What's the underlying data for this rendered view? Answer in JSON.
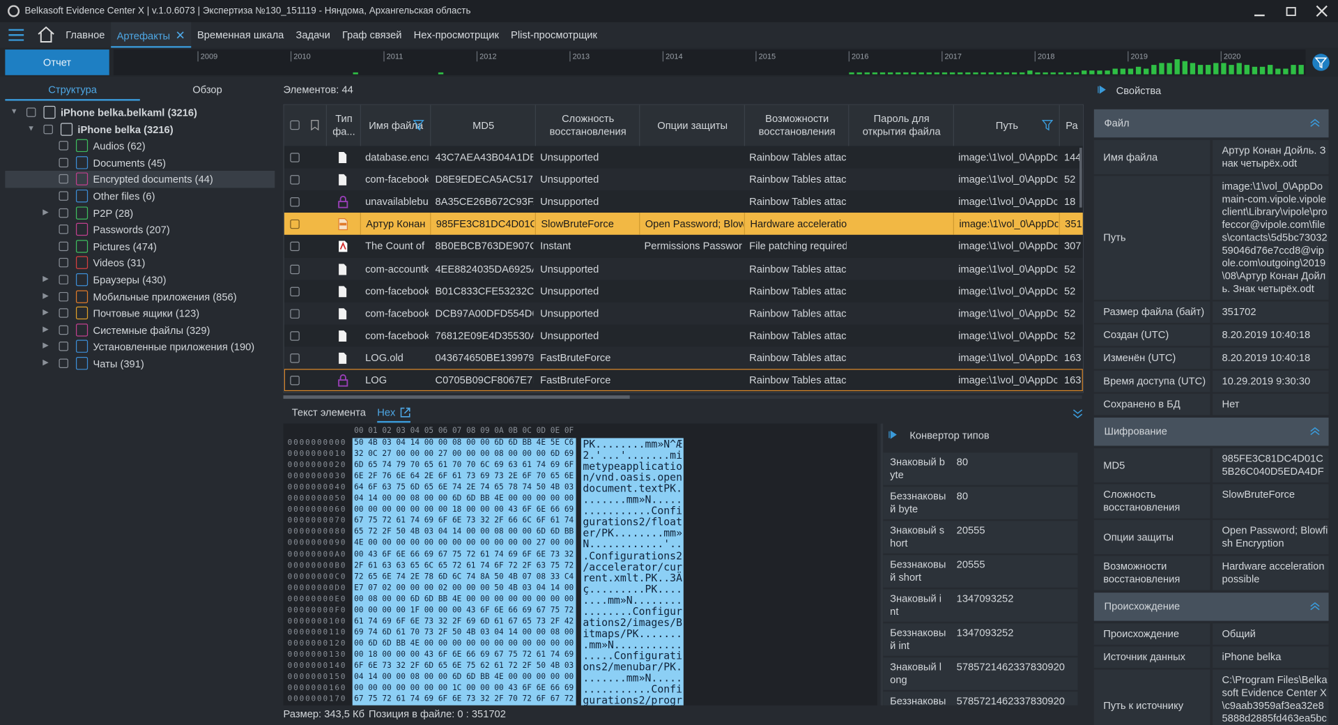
{
  "window": {
    "title": "Belkasoft Evidence Center X | v.1.0.6073 | Экспертиза №130_151119 - Няндома, Архангельская область"
  },
  "menu": {
    "items": [
      "Главное",
      "Артефакты",
      "Временная шкала",
      "Задачи",
      "Граф связей",
      "Hex-просмотрщик",
      "Plist-просмотрщик"
    ],
    "active": 1
  },
  "toolbar": {
    "report": "Отчет"
  },
  "timeline": {
    "years": [
      2009,
      2010,
      2011,
      2012,
      2013,
      2014,
      2015,
      2016,
      2017,
      2018,
      2019,
      2020
    ],
    "counts": [
      0,
      0,
      0,
      0,
      0,
      0,
      0,
      0,
      0,
      0,
      0,
      0,
      0,
      0,
      0,
      0,
      0,
      0,
      0,
      0,
      1,
      0,
      0,
      0,
      0,
      0,
      0,
      0,
      0,
      0,
      0,
      1,
      0,
      0,
      0,
      0,
      0,
      0,
      0,
      0,
      0,
      0,
      0,
      0,
      0,
      0,
      0,
      0,
      0,
      0,
      0,
      0,
      0,
      0,
      0,
      0,
      0,
      0,
      0,
      0,
      0,
      0,
      0,
      0,
      0,
      0,
      0,
      0,
      0,
      0,
      0,
      0,
      0,
      0,
      0,
      0,
      0,
      0,
      0,
      0,
      0,
      0,
      0,
      0,
      1,
      1,
      1,
      1,
      1,
      1,
      1,
      1,
      1,
      1,
      1,
      1,
      1,
      1,
      1,
      1,
      1,
      1,
      1,
      1,
      1,
      1,
      1,
      2,
      1,
      1,
      1,
      1,
      1,
      1,
      2,
      2,
      2,
      2,
      3,
      3,
      3,
      4,
      3,
      5,
      6,
      6,
      8,
      7,
      6,
      5,
      5,
      6,
      6,
      5,
      6,
      5,
      4,
      4,
      5,
      3,
      3,
      5,
      5,
      5
    ]
  },
  "left": {
    "tabs": [
      "Структура",
      "Обзор"
    ],
    "active": 0,
    "tree": [
      {
        "label": "iPhone belka.belkaml (3216)",
        "level": 0,
        "expanded": true,
        "color": "#c4cad1"
      },
      {
        "label": "iPhone belka (3216)",
        "level": 1,
        "expanded": true,
        "color": "#c4cad1"
      },
      {
        "label": "Audios (62)",
        "level": 2,
        "color": "#3fbf5f"
      },
      {
        "label": "Documents (45)",
        "level": 2,
        "color": "#3e8fd8"
      },
      {
        "label": "Encrypted documents (44)",
        "level": 2,
        "color": "#c2408f",
        "selected": true
      },
      {
        "label": "Other files (6)",
        "level": 2,
        "color": "#3e8fd8"
      },
      {
        "label": "P2P (28)",
        "level": 2,
        "expanded": false,
        "color": "#3fbf5f"
      },
      {
        "label": "Passwords (207)",
        "level": 2,
        "color": "#c2408f"
      },
      {
        "label": "Pictures (474)",
        "level": 2,
        "color": "#3fbf5f"
      },
      {
        "label": "Videos (31)",
        "level": 2,
        "color": "#d84040"
      },
      {
        "label": "Браузеры (430)",
        "level": 2,
        "expanded": false,
        "color": "#3e8fd8"
      },
      {
        "label": "Мобильные приложения (856)",
        "level": 2,
        "expanded": false,
        "color": "#e07b2a"
      },
      {
        "label": "Почтовые ящики (123)",
        "level": 2,
        "expanded": false,
        "color": "#e0a02a"
      },
      {
        "label": "Системные файлы (329)",
        "level": 2,
        "expanded": false,
        "color": "#c2408f"
      },
      {
        "label": "Установленные приложения (190)",
        "level": 2,
        "expanded": false,
        "color": "#3e8fd8"
      },
      {
        "label": "Чаты (391)",
        "level": 2,
        "expanded": false,
        "color": "#3e8fd8"
      }
    ]
  },
  "center": {
    "count": "Элементов: 44",
    "columns": [
      "Тип фа...",
      "Имя файла",
      "MD5",
      "Сложность восстановления",
      "Опции защиты",
      "Возможности восстановления",
      "Пароль для открытия файла",
      "Путь",
      "Ра"
    ],
    "rows": [
      {
        "icon": "doc",
        "name": "database.encr",
        "md5": "43C7AEA43B04A1DB",
        "complexity": "Unsupported",
        "recovery": "Rainbow Tables attack",
        "path": "image:\\1\\vol_0\\AppDc",
        "size": "144"
      },
      {
        "icon": "doc",
        "name": "com-facebook",
        "md5": "D8E9EDECA5AC517D",
        "complexity": "Unsupported",
        "recovery": "Rainbow Tables attack",
        "path": "image:\\1\\vol_0\\AppDc",
        "size": "52"
      },
      {
        "icon": "lock",
        "name": "unavailablebu",
        "md5": "8A35CE26B672C93FA",
        "complexity": "Unsupported",
        "recovery": "Rainbow Tables attack",
        "path": "image:\\1\\vol_0\\AppDc",
        "size": "18"
      },
      {
        "icon": "odt",
        "name": "Артур Конан",
        "md5": "985FE3C81DC4D01C:",
        "complexity": "SlowBruteForce",
        "options": "Open Password; Blowf",
        "recovery": "Hardware acceleration",
        "path": "image:\\1\\vol_0\\AppDc",
        "size": "351",
        "selected": true
      },
      {
        "icon": "pdf",
        "name": "The Count of",
        "md5": "8B0EBCB763DE907CI",
        "complexity": "Instant",
        "options": "Permissions Password;",
        "recovery": "File patching required",
        "path": "image:\\1\\vol_0\\AppDc",
        "size": "307"
      },
      {
        "icon": "doc",
        "name": "com-accountk",
        "md5": "4EE8824035DA6925A",
        "complexity": "Unsupported",
        "recovery": "Rainbow Tables attack",
        "path": "image:\\1\\vol_0\\AppDc",
        "size": "52"
      },
      {
        "icon": "doc",
        "name": "com-facebook",
        "md5": "B01C833CFE53232C7",
        "complexity": "Unsupported",
        "recovery": "Rainbow Tables attack",
        "path": "image:\\1\\vol_0\\AppDc",
        "size": "52"
      },
      {
        "icon": "doc",
        "name": "com-facebook",
        "md5": "DCB97A00DFD554D6",
        "complexity": "Unsupported",
        "recovery": "Rainbow Tables attack",
        "path": "image:\\1\\vol_0\\AppDc",
        "size": "52"
      },
      {
        "icon": "doc",
        "name": "com-facebook",
        "md5": "76812E09E4D35530A",
        "complexity": "Unsupported",
        "recovery": "Rainbow Tables attack",
        "path": "image:\\1\\vol_0\\AppDc",
        "size": "52"
      },
      {
        "icon": "doc",
        "name": "LOG.old",
        "md5": "043674650BE139979",
        "complexity": "FastBruteForce",
        "recovery": "Rainbow Tables attack",
        "path": "image:\\1\\vol_0\\AppDc",
        "size": "163"
      },
      {
        "icon": "lock",
        "name": "LOG",
        "md5": "C0705B09CF8067E7B",
        "complexity": "FastBruteForce",
        "recovery": "Rainbow Tables attack",
        "path": "image:\\1\\vol_0\\AppDc",
        "size": "163",
        "focused": true
      }
    ]
  },
  "bottom": {
    "tabs": [
      "Текст элемента",
      "Hex"
    ],
    "active": 1,
    "hex_header": "00 01 02 03 04 05 06 07 08 09 0A 0B 0C 0D 0E 0F",
    "hex": [
      {
        "offset": "0000000000",
        "hex": "50 4B 03 04 14 00 00 08 00 00 6D 6D BB 4E 5E C6",
        "ascii": "PK........mm»N^Æ"
      },
      {
        "offset": "0000000010",
        "hex": "32 0C 27 00 00 00 27 00 00 00 08 00 00 00 6D 69",
        "ascii": "2.'...'.......mi"
      },
      {
        "offset": "0000000020",
        "hex": "6D 65 74 79 70 65 61 70 70 6C 69 63 61 74 69 6F",
        "ascii": "metypeapplicatio"
      },
      {
        "offset": "0000000030",
        "hex": "6E 2F 76 6E 64 2E 6F 61 73 69 73 2E 6F 70 65 6E",
        "ascii": "n/vnd.oasis.open"
      },
      {
        "offset": "0000000040",
        "hex": "64 6F 63 75 6D 65 6E 74 2E 74 65 78 74 50 4B 03",
        "ascii": "document.textPK."
      },
      {
        "offset": "0000000050",
        "hex": "04 14 00 00 08 00 00 6D 6D BB 4E 00 00 00 00 00",
        "ascii": ".......mm»N....."
      },
      {
        "offset": "0000000060",
        "hex": "00 00 00 00 00 00 00 18 00 00 00 43 6F 6E 66 69",
        "ascii": "...........Confi"
      },
      {
        "offset": "0000000070",
        "hex": "67 75 72 61 74 69 6F 6E 73 32 2F 66 6C 6F 61 74",
        "ascii": "gurations2/float"
      },
      {
        "offset": "0000000080",
        "hex": "65 72 2F 50 4B 03 04 14 00 00 08 00 00 6D 6D BB",
        "ascii": "er/PK........mm»"
      },
      {
        "offset": "0000000090",
        "hex": "4E 00 00 00 00 00 00 00 00 00 00 00 00 27 00 00",
        "ascii": "N............'.."
      },
      {
        "offset": "00000000A0",
        "hex": "00 43 6F 6E 66 69 67 75 72 61 74 69 6F 6E 73 32",
        "ascii": ".Configurations2"
      },
      {
        "offset": "00000000B0",
        "hex": "2F 61 63 63 65 6C 65 72 61 74 6F 72 2F 63 75 72",
        "ascii": "/accelerator/cur"
      },
      {
        "offset": "00000000C0",
        "hex": "72 65 6E 74 2E 78 6D 6C 74 8A 50 4B 07 08 33 C4",
        "ascii": "rent.xmlt.PK..3Ä"
      },
      {
        "offset": "00000000D0",
        "hex": "E7 07 02 00 00 00 02 00 00 00 50 4B 03 04 14 00",
        "ascii": "ç.........PK...."
      },
      {
        "offset": "00000000E0",
        "hex": "00 08 00 00 6D 6D BB 4E 00 00 00 00 00 00 00 00",
        "ascii": "....mm»N........"
      },
      {
        "offset": "00000000F0",
        "hex": "00 00 00 00 1F 00 00 00 43 6F 6E 66 69 67 75 72",
        "ascii": "........Configur"
      },
      {
        "offset": "0000000100",
        "hex": "61 74 69 6F 6E 73 32 2F 69 6D 61 67 65 73 2F 42",
        "ascii": "ations2/images/B"
      },
      {
        "offset": "0000000110",
        "hex": "69 74 6D 61 70 73 2F 50 4B 03 04 14 00 00 08 00",
        "ascii": "itmaps/PK......."
      },
      {
        "offset": "0000000120",
        "hex": "00 6D 6D BB 4E 00 00 00 00 00 00 00 00 00 00 00",
        "ascii": ".mm»N..........."
      },
      {
        "offset": "0000000130",
        "hex": "00 18 00 00 00 43 6F 6E 66 69 67 75 72 61 74 69",
        "ascii": ".....Configurati"
      },
      {
        "offset": "0000000140",
        "hex": "6F 6E 73 32 2F 6D 65 6E 75 62 61 72 2F 50 4B 03",
        "ascii": "ons2/menubar/PK."
      },
      {
        "offset": "0000000150",
        "hex": "04 14 00 00 08 00 00 6D 6D BB 4E 00 00 00 00 00",
        "ascii": ".......mm»N....."
      },
      {
        "offset": "0000000160",
        "hex": "00 00 00 00 00 00 00 1C 00 00 00 43 6F 6E 66 69",
        "ascii": "...........Confi"
      },
      {
        "offset": "0000000170",
        "hex": "67 75 72 61 74 69 6F 6E 73 32 2F 70 72 6F 67 72",
        "ascii": "gurations2/progr"
      }
    ]
  },
  "converter": {
    "title": "Конвертор типов",
    "rows": [
      {
        "label": "Знаковый byte",
        "value": "80"
      },
      {
        "label": "Беззнаковый byte",
        "value": "80"
      },
      {
        "label": "Знаковый short",
        "value": "20555"
      },
      {
        "label": "Беззнаковый short",
        "value": "20555"
      },
      {
        "label": "Знаковый int",
        "value": "1347093252"
      },
      {
        "label": "Беззнаковый int",
        "value": "1347093252"
      },
      {
        "label": "Знаковый long",
        "value": "5785721462337830920"
      },
      {
        "label": "Беззнаковый long",
        "value": "5785721462337830920"
      }
    ]
  },
  "status": {
    "size": "Размер: 343,5 Кб",
    "position": "Позиция в файле: 0 : 351702"
  },
  "properties": {
    "title": "Свойства",
    "sections": [
      {
        "title": "Файл",
        "rows": [
          {
            "label": "Имя файла",
            "value": "Артур Конан Дойль. Знак четырёх.odt"
          },
          {
            "label": "Путь",
            "value": "image:\\1\\vol_0\\AppDomain-com.vipole.vipoleclient\\Library\\vipole\\profeccor@vipole.com\\files\\contacts\\5d5bc7303259046d76e7ccd8@vipole.com\\outgoing\\2019\\08\\Артур Конан Дойль. Знак четырёх.odt"
          },
          {
            "label": "Размер файла (байт)",
            "value": "351702"
          },
          {
            "label": "Создан (UTC)",
            "value": "8.20.2019 10:40:18"
          },
          {
            "label": "Изменён (UTC)",
            "value": "8.20.2019 10:40:18"
          },
          {
            "label": "Время доступа (UTC)",
            "value": "10.29.2019 9:30:30"
          },
          {
            "label": "Сохранено в БД",
            "value": "Нет"
          }
        ]
      },
      {
        "title": "Шифрование",
        "rows": [
          {
            "label": "MD5",
            "value": "985FE3C81DC4D01C5B26C040D5EDA4DF"
          },
          {
            "label": "Сложность восстановления",
            "value": "SlowBruteForce"
          },
          {
            "label": "Опции защиты",
            "value": "Open Password; Blowfish Encryption"
          },
          {
            "label": "Возможности восстановления",
            "value": "Hardware acceleration possible"
          }
        ]
      },
      {
        "title": "Происхождение",
        "rows": [
          {
            "label": "Происхождение",
            "value": "Общий"
          },
          {
            "label": "Источник данных",
            "value": "iPhone belka"
          },
          {
            "label": "Путь к источнику",
            "value": "C:\\Program Files\\Belkasoft Evidence Center X\\c9aab3959af3ea32e85888d2885fd463ea5bc9c"
          }
        ]
      }
    ]
  }
}
